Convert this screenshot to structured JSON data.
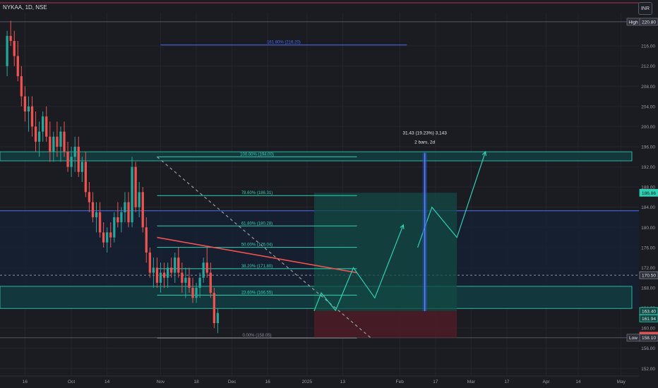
{
  "header": {
    "symbol": "NYKAA, 1D, NSE",
    "currency_button": "INR"
  },
  "colors": {
    "background": "#1b1b22",
    "up_candle": "#26a69a",
    "down_candle": "#ef5350",
    "fib_line": "#2fd1b4",
    "blue_line": "#4b6ef0",
    "trendline": "#ef5350",
    "projection": "#2fd1b4",
    "target_zone": "#134a44",
    "stop_zone": "#4a1d26",
    "text": "#c8ccd6"
  },
  "chart_data": {
    "type": "candlestick",
    "title": "NYKAA, 1D, NSE",
    "ylim": [
      150.5,
      222.6
    ],
    "yticks": [
      152,
      156,
      160,
      164,
      168,
      172,
      176,
      180,
      184,
      188,
      192,
      196,
      200,
      204,
      208,
      212,
      216
    ],
    "y_tick_labels": [
      "152.00",
      "156.00",
      "160.00",
      "164.00",
      "168.00",
      "172.00",
      "176.00",
      "180.00",
      "184.00",
      "188.00",
      "192.00",
      "196.00",
      "200.00",
      "204.00",
      "208.00",
      "212.00",
      "216.00"
    ],
    "x_tick_labels": [
      "16",
      "Oct",
      "14",
      "Nov",
      "18",
      "Dec",
      "16",
      "2025",
      "13",
      "Feb",
      "17",
      "Mar",
      "17",
      "Apr",
      "14",
      "May"
    ],
    "x_tick_index": [
      5,
      18,
      28,
      43,
      53,
      63,
      73,
      84,
      94,
      110,
      120,
      130,
      140,
      151,
      160,
      172
    ],
    "x_range": [
      -2,
      177
    ],
    "candles": [
      [
        212,
        219,
        210,
        218
      ],
      [
        218,
        221,
        216,
        217
      ],
      [
        217,
        219,
        212,
        214
      ],
      [
        214,
        217,
        209,
        210
      ],
      [
        210,
        212,
        204,
        206
      ],
      [
        206,
        208,
        201,
        203
      ],
      [
        203,
        206,
        199,
        204
      ],
      [
        204,
        206,
        198,
        200
      ],
      [
        200,
        203,
        195,
        197
      ],
      [
        197,
        201,
        194,
        199
      ],
      [
        199,
        203,
        197,
        202
      ],
      [
        202,
        204,
        197,
        198
      ],
      [
        198,
        201,
        193,
        195
      ],
      [
        195,
        199,
        193,
        198
      ],
      [
        198,
        201,
        194,
        196
      ],
      [
        196,
        200,
        193,
        199
      ],
      [
        199,
        201,
        194,
        195
      ],
      [
        195,
        197,
        191,
        192
      ],
      [
        192,
        196,
        190,
        194
      ],
      [
        194,
        198,
        191,
        196
      ],
      [
        196,
        198,
        190,
        191
      ],
      [
        191,
        194,
        189,
        193
      ],
      [
        193,
        195,
        186,
        187
      ],
      [
        187,
        189,
        183,
        185
      ],
      [
        185,
        187,
        181,
        182
      ],
      [
        182,
        185,
        179,
        183
      ],
      [
        183,
        185,
        178,
        179
      ],
      [
        179,
        181,
        176,
        177
      ],
      [
        177,
        180,
        175,
        179
      ],
      [
        179,
        181,
        176,
        178
      ],
      [
        178,
        183,
        177,
        182
      ],
      [
        182,
        185,
        180,
        181
      ],
      [
        181,
        184,
        179,
        183
      ],
      [
        183,
        187,
        181,
        185
      ],
      [
        185,
        187,
        180,
        181
      ],
      [
        181,
        194,
        180,
        192
      ],
      [
        192,
        193,
        183,
        184
      ],
      [
        184,
        189,
        182,
        187
      ],
      [
        187,
        188,
        179,
        180
      ],
      [
        180,
        182,
        173,
        175
      ],
      [
        175,
        176,
        170,
        171
      ],
      [
        171,
        174,
        168,
        172
      ],
      [
        172,
        174,
        168,
        169
      ],
      [
        169,
        173,
        167,
        171
      ],
      [
        171,
        173,
        168,
        170
      ],
      [
        170,
        173,
        168,
        172
      ],
      [
        172,
        174,
        170,
        171
      ],
      [
        171,
        175,
        169,
        174
      ],
      [
        174,
        176,
        170,
        171
      ],
      [
        171,
        173,
        167,
        169
      ],
      [
        169,
        172,
        166,
        170
      ],
      [
        170,
        172,
        167,
        168
      ],
      [
        168,
        170,
        165,
        166
      ],
      [
        166,
        169,
        165,
        168
      ],
      [
        168,
        171,
        166,
        170
      ],
      [
        170,
        174,
        169,
        173
      ],
      [
        173,
        176,
        170,
        171
      ],
      [
        171,
        173,
        166,
        167
      ],
      [
        167,
        168,
        160,
        161
      ],
      [
        161,
        164,
        159,
        163
      ]
    ],
    "candle_index_start": 0,
    "price_axis_labels": [
      {
        "label": "220.80",
        "value": 220.8,
        "tag": "High"
      },
      {
        "label": "186.86",
        "value": 186.86
      },
      {
        "label": "170.50",
        "value": 170.5
      },
      {
        "label": "163.40",
        "value": 163.4
      },
      {
        "label": "161.94",
        "value": 161.94
      },
      {
        "label": "158.50",
        "value": 158.5
      },
      {
        "label": "158.10",
        "value": 158.1,
        "tag": "Low"
      }
    ],
    "fib_levels": [
      {
        "label": "0.00% (158.05)",
        "value": 158.05
      },
      {
        "label": "23.60% (166.55)",
        "value": 166.55
      },
      {
        "label": "38.20% (171.80)",
        "value": 171.8
      },
      {
        "label": "50.00% (176.04)",
        "value": 176.04
      },
      {
        "label": "61.80% (180.28)",
        "value": 180.28
      },
      {
        "label": "78.60% (186.31)",
        "value": 186.31
      },
      {
        "label": "100.00% (194.00)",
        "value": 194.0
      },
      {
        "label": "161.80% (216.20)",
        "value": 216.2
      }
    ],
    "horizontal_zones": [
      {
        "from": 193.2,
        "to": 195.0
      },
      {
        "from": 163.9,
        "to": 168.3
      }
    ],
    "horizontal_lines": [
      {
        "value": 183.3,
        "color": "blue"
      },
      {
        "value": 170.5,
        "style": "dashed"
      }
    ],
    "measure": {
      "text1": "31.43 (19.23%) 3,143",
      "text2": "2 bars, 2d",
      "from": 163.4,
      "to": 194.8,
      "x": 117
    },
    "trendline": {
      "x1": 42,
      "y1": 178.0,
      "x2": 98,
      "y2": 171.0
    },
    "diagonal_dashed": {
      "x1": 42,
      "y1": 194.0,
      "x2": 102,
      "y2": 158.0
    },
    "position_tool": {
      "x_start": 86,
      "x_end": 126,
      "entry": 163.4,
      "target": 186.86,
      "stop": 158.1
    },
    "projections": [
      [
        [
          86,
          163.4
        ],
        [
          88,
          167
        ],
        [
          92,
          163.5
        ],
        [
          97,
          172
        ],
        [
          103,
          166
        ],
        [
          111,
          180.5
        ]
      ],
      [
        [
          115,
          176
        ],
        [
          119,
          184
        ],
        [
          126,
          178
        ],
        [
          134,
          195
        ]
      ]
    ]
  }
}
